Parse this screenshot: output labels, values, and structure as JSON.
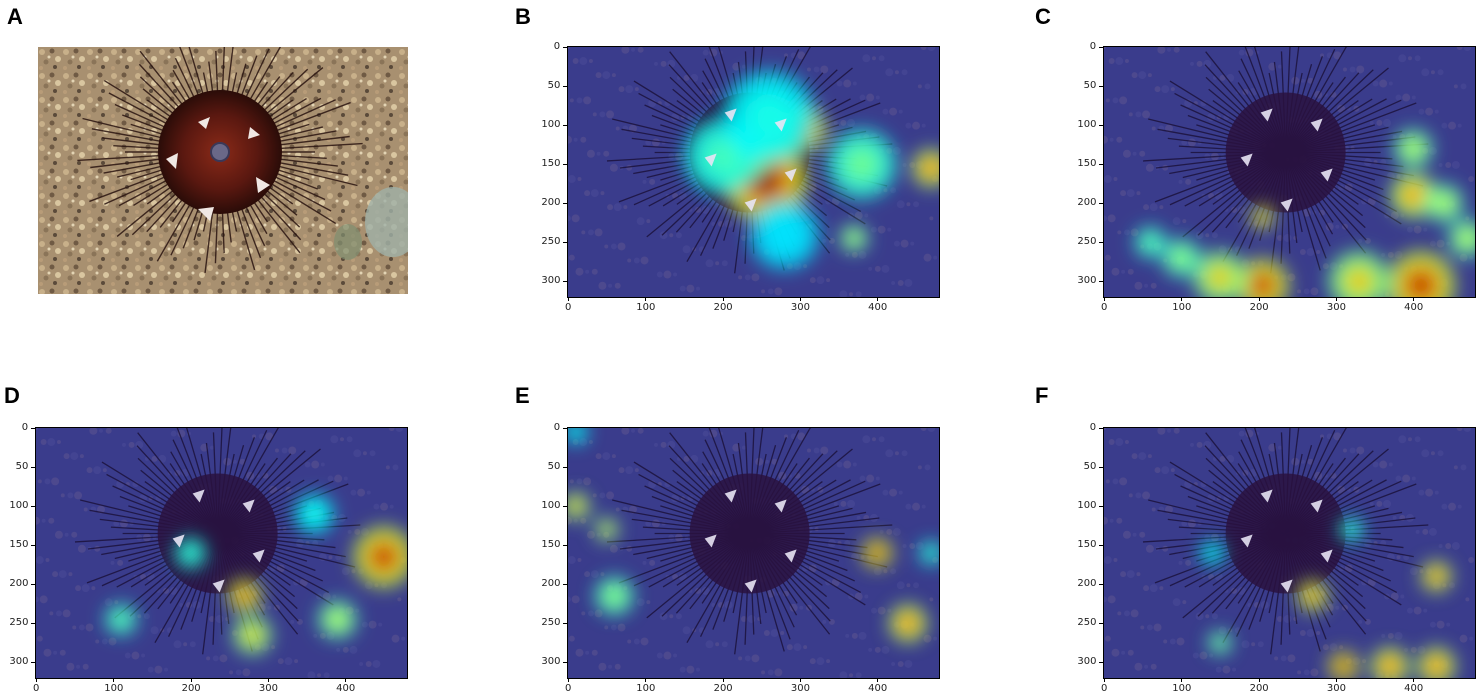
{
  "panels": [
    {
      "id": "A",
      "letter": "A",
      "type": "photo"
    },
    {
      "id": "B",
      "letter": "B",
      "type": "heatmap"
    },
    {
      "id": "C",
      "letter": "C",
      "type": "heatmap"
    },
    {
      "id": "D",
      "letter": "D",
      "type": "heatmap"
    },
    {
      "id": "E",
      "letter": "E",
      "type": "heatmap"
    },
    {
      "id": "F",
      "letter": "F",
      "type": "heatmap"
    }
  ],
  "axes": {
    "x_ticks": [
      "0",
      "100",
      "200",
      "300",
      "400"
    ],
    "y_ticks": [
      "0",
      "50",
      "100",
      "150",
      "200",
      "250",
      "300"
    ],
    "x_range": [
      0,
      480
    ],
    "y_range": [
      0,
      320
    ]
  },
  "hotspots": {
    "B": [
      {
        "x": 255,
        "y": 170,
        "r": 55,
        "level": 1.0
      },
      {
        "x": 305,
        "y": 105,
        "r": 30,
        "level": 0.95
      },
      {
        "x": 240,
        "y": 140,
        "r": 25,
        "level": 0.8
      },
      {
        "x": 200,
        "y": 140,
        "r": 50,
        "level": 0.45
      },
      {
        "x": 260,
        "y": 90,
        "r": 60,
        "level": 0.4
      },
      {
        "x": 380,
        "y": 150,
        "r": 45,
        "level": 0.5
      },
      {
        "x": 470,
        "y": 155,
        "r": 25,
        "level": 0.85
      },
      {
        "x": 370,
        "y": 245,
        "r": 18,
        "level": 0.6
      },
      {
        "x": 280,
        "y": 240,
        "r": 45,
        "level": 0.35
      }
    ],
    "C": [
      {
        "x": 205,
        "y": 305,
        "r": 35,
        "level": 0.95
      },
      {
        "x": 150,
        "y": 295,
        "r": 35,
        "level": 0.7
      },
      {
        "x": 410,
        "y": 305,
        "r": 45,
        "level": 0.95
      },
      {
        "x": 330,
        "y": 300,
        "r": 40,
        "level": 0.7
      },
      {
        "x": 400,
        "y": 190,
        "r": 30,
        "level": 0.8
      },
      {
        "x": 440,
        "y": 200,
        "r": 25,
        "level": 0.6
      },
      {
        "x": 400,
        "y": 130,
        "r": 25,
        "level": 0.6
      },
      {
        "x": 205,
        "y": 218,
        "r": 15,
        "level": 0.85
      },
      {
        "x": 100,
        "y": 270,
        "r": 25,
        "level": 0.55
      },
      {
        "x": 60,
        "y": 250,
        "r": 20,
        "level": 0.5
      },
      {
        "x": 470,
        "y": 245,
        "r": 25,
        "level": 0.6
      }
    ],
    "D": [
      {
        "x": 450,
        "y": 165,
        "r": 40,
        "level": 0.95
      },
      {
        "x": 270,
        "y": 215,
        "r": 22,
        "level": 0.9
      },
      {
        "x": 280,
        "y": 265,
        "r": 25,
        "level": 0.7
      },
      {
        "x": 390,
        "y": 245,
        "r": 25,
        "level": 0.6
      },
      {
        "x": 360,
        "y": 110,
        "r": 25,
        "level": 0.4
      },
      {
        "x": 110,
        "y": 245,
        "r": 20,
        "level": 0.5
      },
      {
        "x": 200,
        "y": 160,
        "r": 20,
        "level": 0.45
      }
    ],
    "E": [
      {
        "x": 400,
        "y": 160,
        "r": 20,
        "level": 0.95
      },
      {
        "x": 440,
        "y": 250,
        "r": 25,
        "level": 0.85
      },
      {
        "x": 10,
        "y": 100,
        "r": 18,
        "level": 0.75
      },
      {
        "x": 50,
        "y": 130,
        "r": 15,
        "level": 0.7
      },
      {
        "x": 60,
        "y": 215,
        "r": 25,
        "level": 0.55
      },
      {
        "x": 10,
        "y": 5,
        "r": 15,
        "level": 0.4
      },
      {
        "x": 470,
        "y": 160,
        "r": 15,
        "level": 0.45
      }
    ],
    "F": [
      {
        "x": 310,
        "y": 305,
        "r": 20,
        "level": 0.95
      },
      {
        "x": 370,
        "y": 305,
        "r": 25,
        "level": 0.85
      },
      {
        "x": 430,
        "y": 305,
        "r": 25,
        "level": 0.85
      },
      {
        "x": 430,
        "y": 190,
        "r": 20,
        "level": 0.85
      },
      {
        "x": 270,
        "y": 215,
        "r": 20,
        "level": 0.85
      },
      {
        "x": 150,
        "y": 275,
        "r": 15,
        "level": 0.55
      },
      {
        "x": 140,
        "y": 160,
        "r": 15,
        "level": 0.4
      },
      {
        "x": 320,
        "y": 130,
        "r": 15,
        "level": 0.45
      }
    ]
  }
}
